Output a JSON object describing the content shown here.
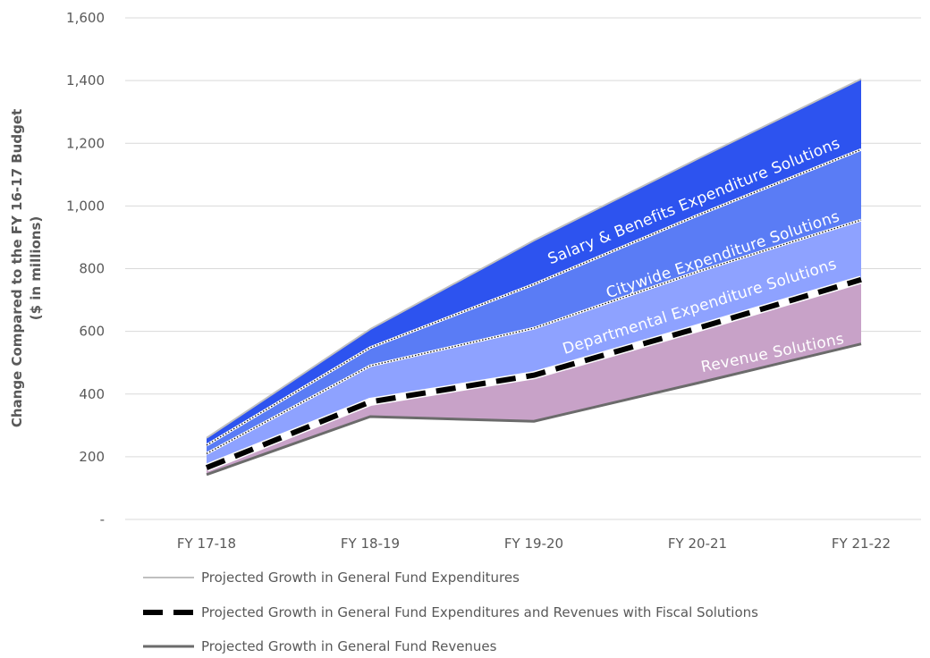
{
  "chart_data": {
    "type": "area",
    "categories": [
      "FY 17-18",
      "FY 18-19",
      "FY 19-20",
      "FY 20-21",
      "FY 21-22"
    ],
    "ylabel": [
      "Change Compared to the FY 16-17 Budget",
      "($ in millions)"
    ],
    "ylim": [
      0,
      1600
    ],
    "yticks": [
      {
        "value": 0,
        "label": "-"
      },
      {
        "value": 200,
        "label": "200"
      },
      {
        "value": 400,
        "label": "400"
      },
      {
        "value": 600,
        "label": "600"
      },
      {
        "value": 800,
        "label": "800"
      },
      {
        "value": 1000,
        "label": "1,000"
      },
      {
        "value": 1200,
        "label": "1,200"
      },
      {
        "value": 1400,
        "label": "1,400"
      },
      {
        "value": 1600,
        "label": "1,600"
      }
    ],
    "grid": true,
    "boundaries": {
      "revenues": [
        143,
        328,
        313,
        435,
        560
      ],
      "revenue_solutions_top": [
        165,
        375,
        448,
        605,
        760
      ],
      "departmental_top": [
        210,
        490,
        610,
        790,
        955
      ],
      "citywide_top": [
        237,
        548,
        750,
        970,
        1180
      ],
      "expenditures": [
        260,
        607,
        890,
        1150,
        1405
      ]
    },
    "bands": [
      {
        "name": "Revenue Solutions",
        "color": "#c8a2c8"
      },
      {
        "name": "Departmental Expenditure Solutions",
        "color": "#8ea2ff"
      },
      {
        "name": "Citywide Expenditure Solutions",
        "color": "#5a7cf5"
      },
      {
        "name": "Salary & Benefits Expenditure Solutions",
        "color": "#2d53ef"
      }
    ],
    "lines": [
      {
        "name": "Projected Growth in General Fund Expenditures",
        "values": [
          260,
          607,
          890,
          1150,
          1405
        ],
        "color": "#bfbfbf",
        "style": "thin"
      },
      {
        "name": "Projected Growth in General Fund Expenditures and Revenues with Fiscal Solutions",
        "values": [
          165,
          375,
          460,
          610,
          765
        ],
        "color": "#000000",
        "style": "dashed-thick"
      },
      {
        "name": "Projected Growth in General Fund Revenues",
        "values": [
          143,
          328,
          313,
          435,
          560
        ],
        "color": "#6b6b6b",
        "style": "solid"
      }
    ],
    "legend_position": "bottom"
  }
}
